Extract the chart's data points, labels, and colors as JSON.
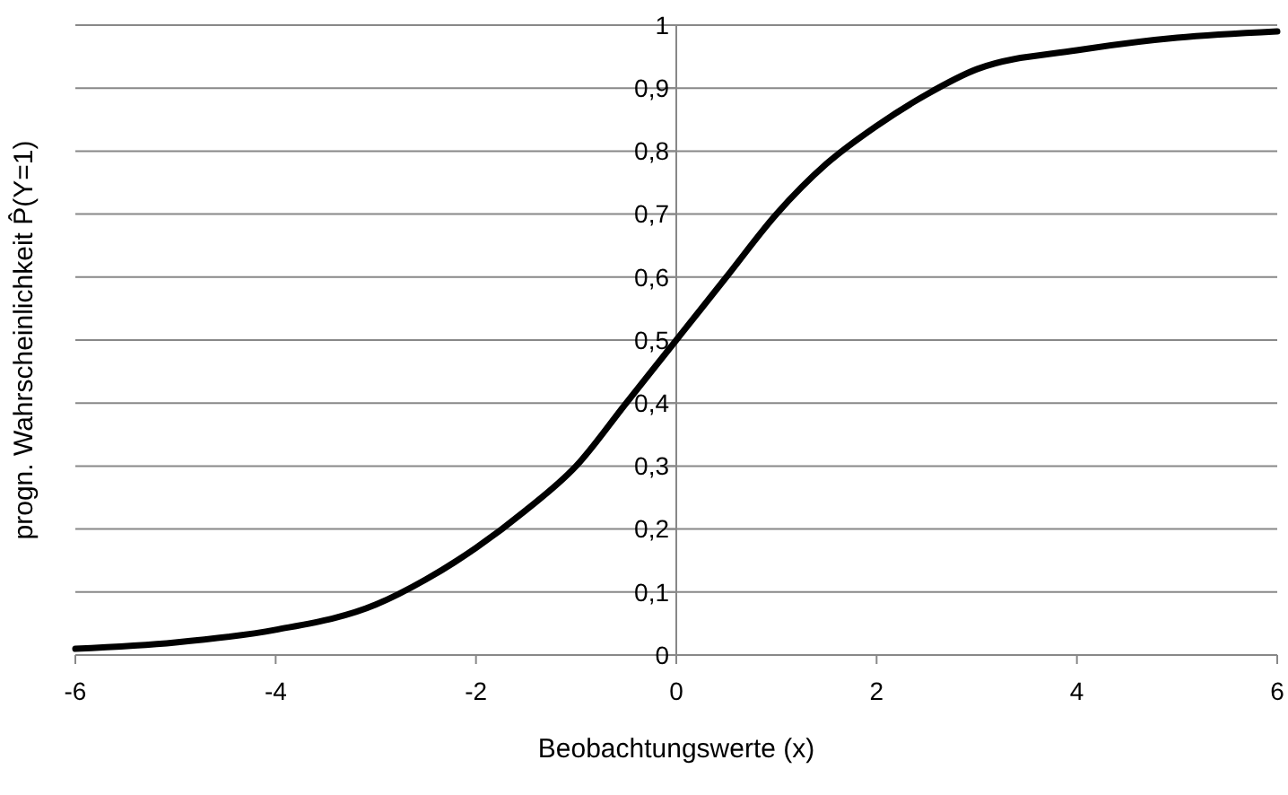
{
  "chart_data": {
    "type": "line",
    "xlabel": "Beobachtungswerte (x)",
    "ylabel": "progn. Wahrscheinlichkeit P̂(Y=1)",
    "x": [
      -6,
      -5,
      -4,
      -3,
      -2.5,
      -2,
      -1.5,
      -1,
      -0.5,
      0,
      0.5,
      1,
      1.5,
      2,
      2.5,
      3,
      4,
      5,
      6
    ],
    "series": [
      {
        "color": "#000000",
        "values": [
          0.01,
          0.02,
          0.04,
          0.08,
          0.12,
          0.17,
          0.23,
          0.3,
          0.4,
          0.5,
          0.6,
          0.7,
          0.78,
          0.84,
          0.89,
          0.93,
          0.96,
          0.98,
          0.99
        ]
      }
    ],
    "xlim": [
      -6,
      6
    ],
    "xticks": [
      -6,
      -4,
      -2,
      0,
      2,
      4,
      6
    ],
    "ylim": [
      0,
      1
    ],
    "yticks": [
      {
        "value": 0,
        "label": "0"
      },
      {
        "value": 0.1,
        "label": "0,1"
      },
      {
        "value": 0.2,
        "label": "0,2"
      },
      {
        "value": 0.3,
        "label": "0,3"
      },
      {
        "value": 0.4,
        "label": "0,4"
      },
      {
        "value": 0.5,
        "label": "0,5"
      },
      {
        "value": 0.6,
        "label": "0,6"
      },
      {
        "value": 0.7,
        "label": "0,7"
      },
      {
        "value": 0.8,
        "label": "0,8"
      },
      {
        "value": 0.9,
        "label": "0,9"
      },
      {
        "value": 1,
        "label": "1"
      }
    ],
    "grid": "y",
    "marker": "none",
    "line_style": "solid"
  }
}
